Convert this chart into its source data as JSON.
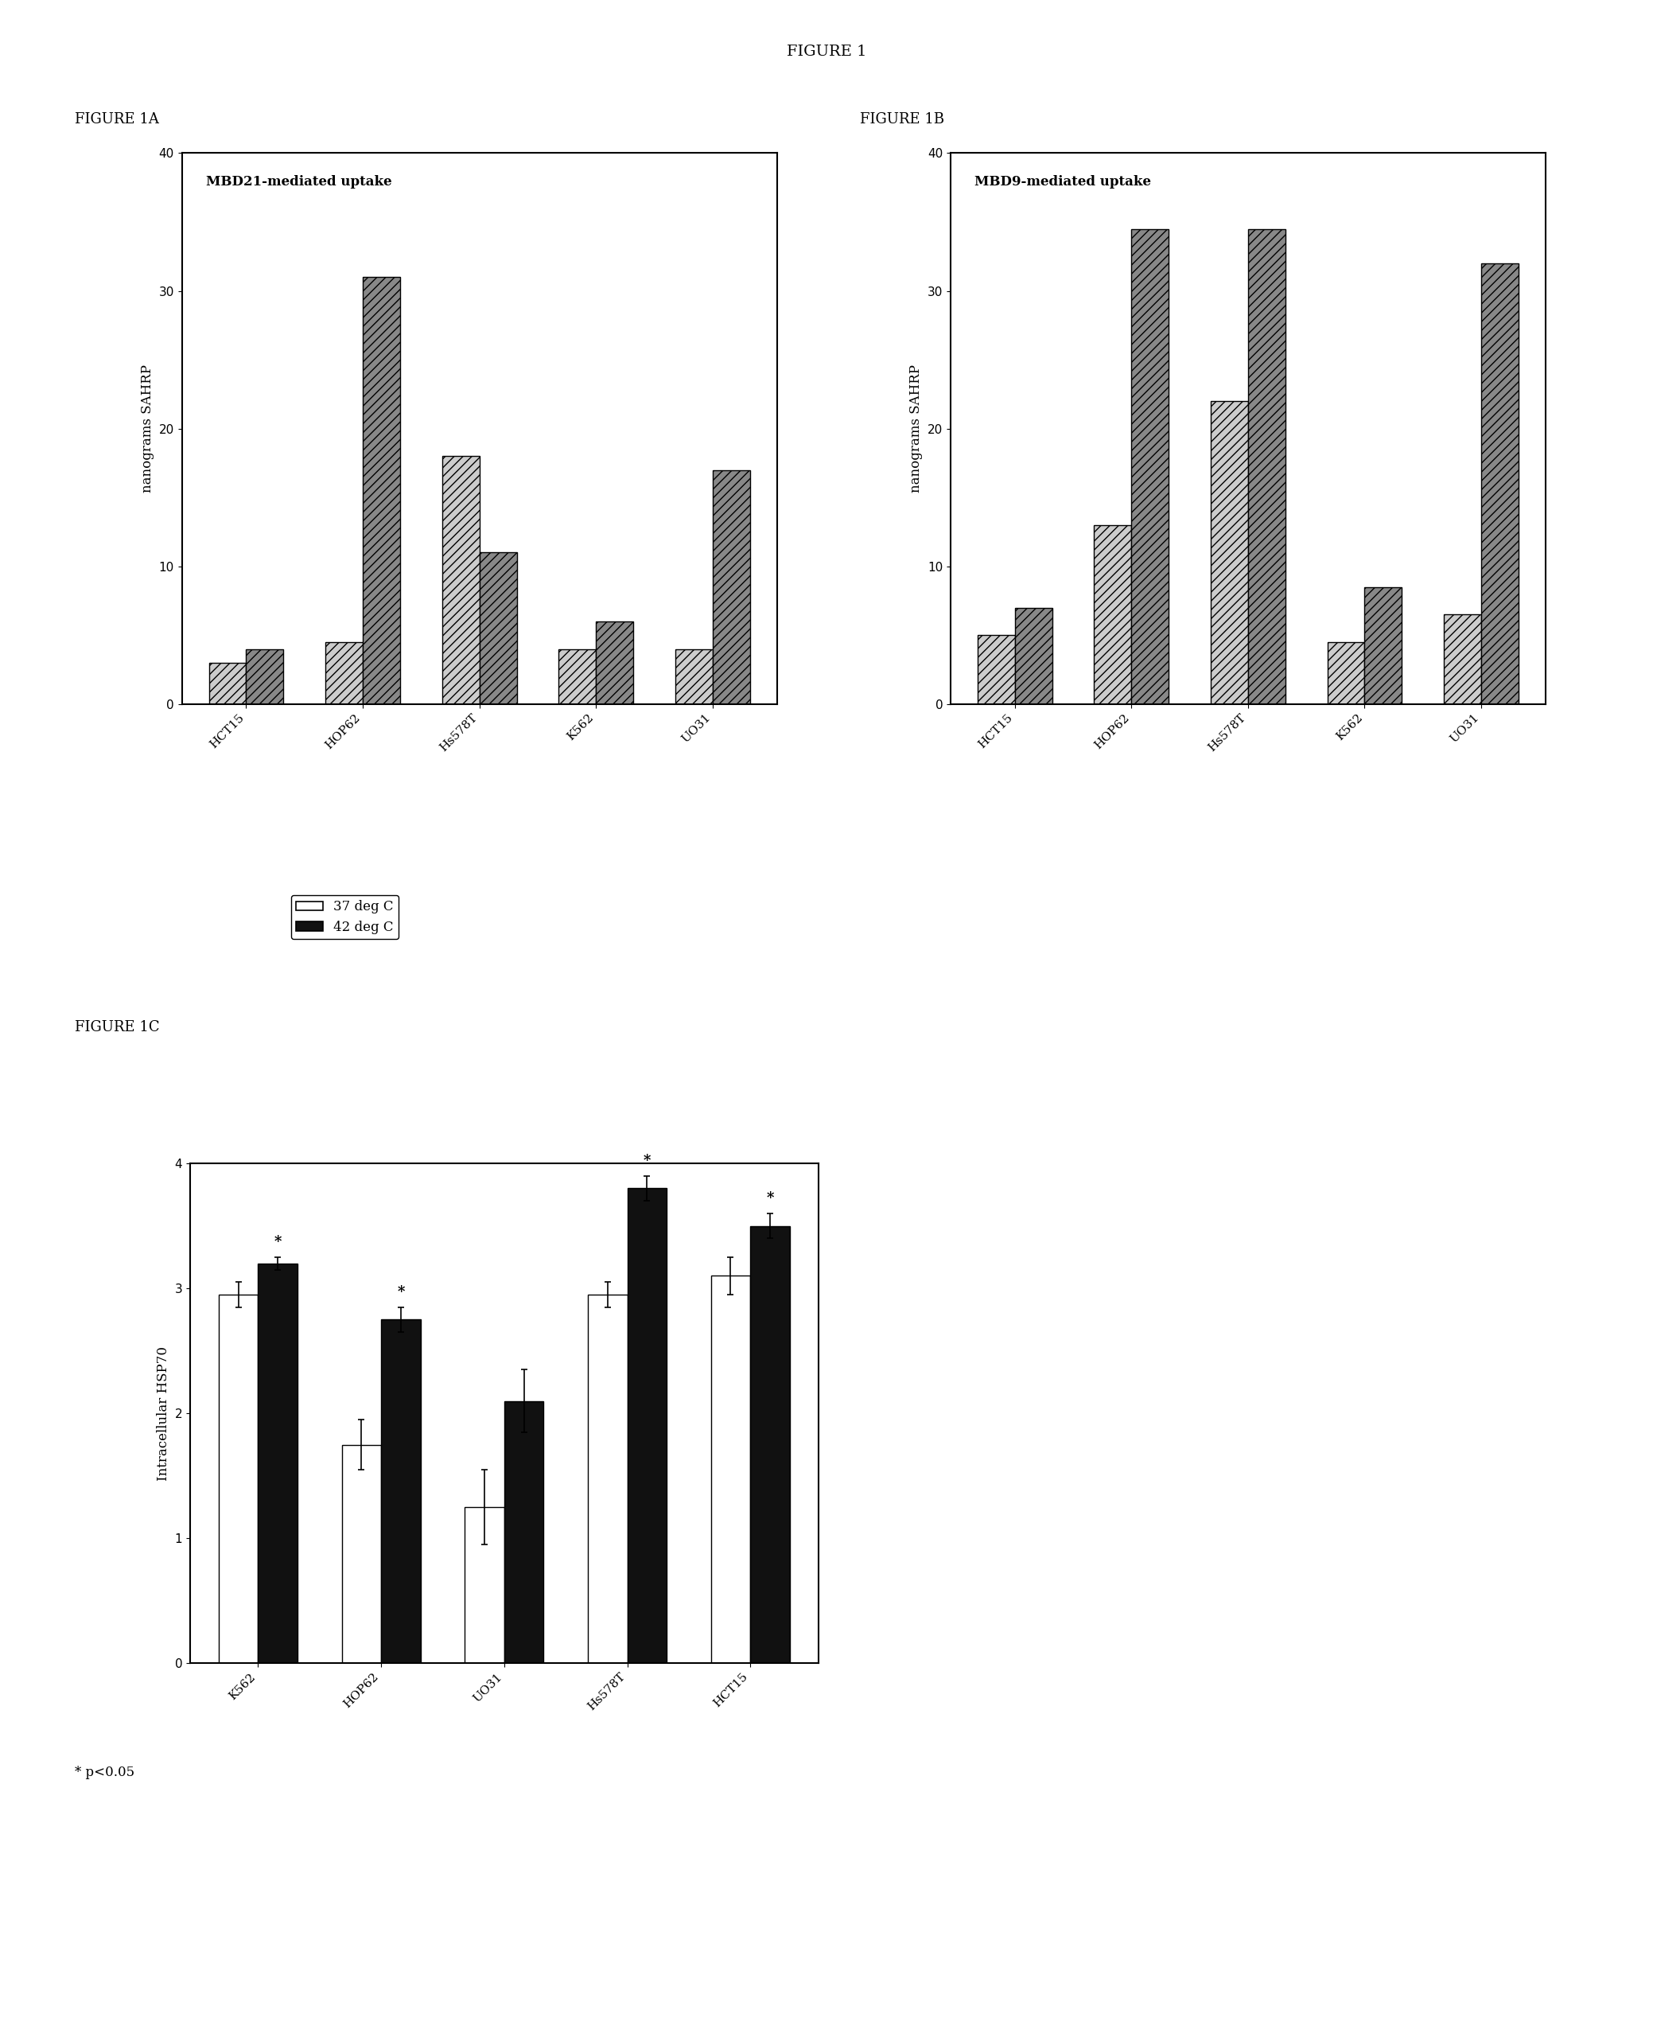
{
  "fig_title": "FIGURE 1",
  "fig_title_fontsize": 14,
  "fig1A_label": "FIGURE 1A",
  "fig1B_label": "FIGURE 1B",
  "fig1C_label": "FIGURE 1C",
  "panel_A": {
    "title": "MBD21-mediated uptake",
    "ylabel": "nanograms SAHRP",
    "ylim": [
      0,
      40
    ],
    "yticks": [
      0,
      10,
      20,
      30,
      40
    ],
    "categories": [
      "HCT15",
      "HOP62",
      "Hs578T",
      "K562",
      "UO31"
    ],
    "bar1_values": [
      3.0,
      4.5,
      18.0,
      4.0,
      4.0
    ],
    "bar2_values": [
      4.0,
      31.0,
      11.0,
      6.0,
      17.0
    ],
    "bar1_color": "#cccccc",
    "bar2_color": "#888888",
    "bar1_hatch": "///",
    "bar2_hatch": "///"
  },
  "panel_B": {
    "title": "MBD9-mediated uptake",
    "ylabel": "nanograms SAHRP",
    "ylim": [
      0,
      40
    ],
    "yticks": [
      0,
      10,
      20,
      30,
      40
    ],
    "categories": [
      "HCT15",
      "HOP62",
      "Hs578T",
      "K562",
      "UO31"
    ],
    "bar1_values": [
      5.0,
      13.0,
      22.0,
      4.5,
      6.5
    ],
    "bar2_values": [
      7.0,
      34.5,
      34.5,
      8.5,
      32.0
    ],
    "bar1_color": "#cccccc",
    "bar2_color": "#888888",
    "bar1_hatch": "///",
    "bar2_hatch": "///"
  },
  "panel_C": {
    "ylabel": "Intracellular HSP70",
    "ylim": [
      0,
      4
    ],
    "yticks": [
      0,
      1,
      2,
      3,
      4
    ],
    "categories": [
      "K562",
      "HOP62",
      "UO31",
      "Hs578T",
      "HCT15"
    ],
    "bar1_values": [
      2.95,
      1.75,
      1.25,
      2.95,
      3.1
    ],
    "bar2_values": [
      3.2,
      2.75,
      2.1,
      3.8,
      3.5
    ],
    "bar1_errors": [
      0.1,
      0.2,
      0.3,
      0.1,
      0.15
    ],
    "bar2_errors": [
      0.05,
      0.1,
      0.25,
      0.1,
      0.1
    ],
    "bar1_color": "#ffffff",
    "bar2_color": "#111111",
    "legend_labels": [
      "37 deg C",
      "42 deg C"
    ],
    "asterisk_on_bar1": [
      0,
      1,
      3,
      4
    ],
    "asterisk_on_bar2": [
      0,
      1,
      3,
      4
    ],
    "pvalue_text": "* p<0.05"
  },
  "background_color": "#ffffff",
  "text_color": "#000000"
}
